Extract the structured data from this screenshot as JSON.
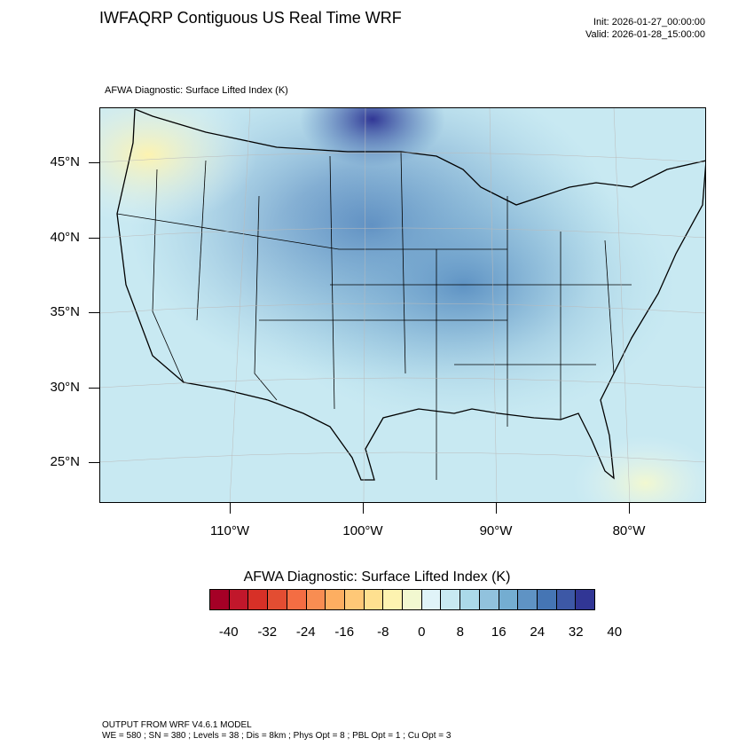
{
  "title": "IWFAQRP Contiguous US Real Time WRF",
  "init": "Init: 2026-01-27_00:00:00",
  "valid": "Valid: 2026-01-28_15:00:00",
  "subtitle": "AFWA Diagnostic: Surface Lifted Index   (K)",
  "lat_labels": [
    "45°N",
    "40°N",
    "35°N",
    "30°N",
    "25°N"
  ],
  "lon_labels": [
    "110°W",
    "100°W",
    "90°W",
    "80°W"
  ],
  "colorbar": {
    "title": "AFWA Diagnostic: Surface Lifted Index  (K)",
    "labels": [
      "-40",
      "-32",
      "-24",
      "-16",
      "-8",
      "0",
      "8",
      "16",
      "24",
      "32",
      "40"
    ],
    "colors": [
      "#a50026",
      "#c1172b",
      "#d73027",
      "#e34d32",
      "#f46d43",
      "#f88d52",
      "#fdae61",
      "#fec877",
      "#fee090",
      "#fdf3b0",
      "#f2f8d0",
      "#e0f3f8",
      "#c8e9f2",
      "#abd9e9",
      "#91c2dd",
      "#74add1",
      "#5f93c4",
      "#4575b4",
      "#3d58a6",
      "#313695"
    ]
  },
  "footer": {
    "line1": "OUTPUT FROM WRF V4.6.1 MODEL",
    "line2": "WE = 580 ; SN = 380 ; Levels = 38 ; Dis = 8km ; Phys Opt = 8 ; PBL Opt = 1 ; Cu Opt = 3"
  }
}
